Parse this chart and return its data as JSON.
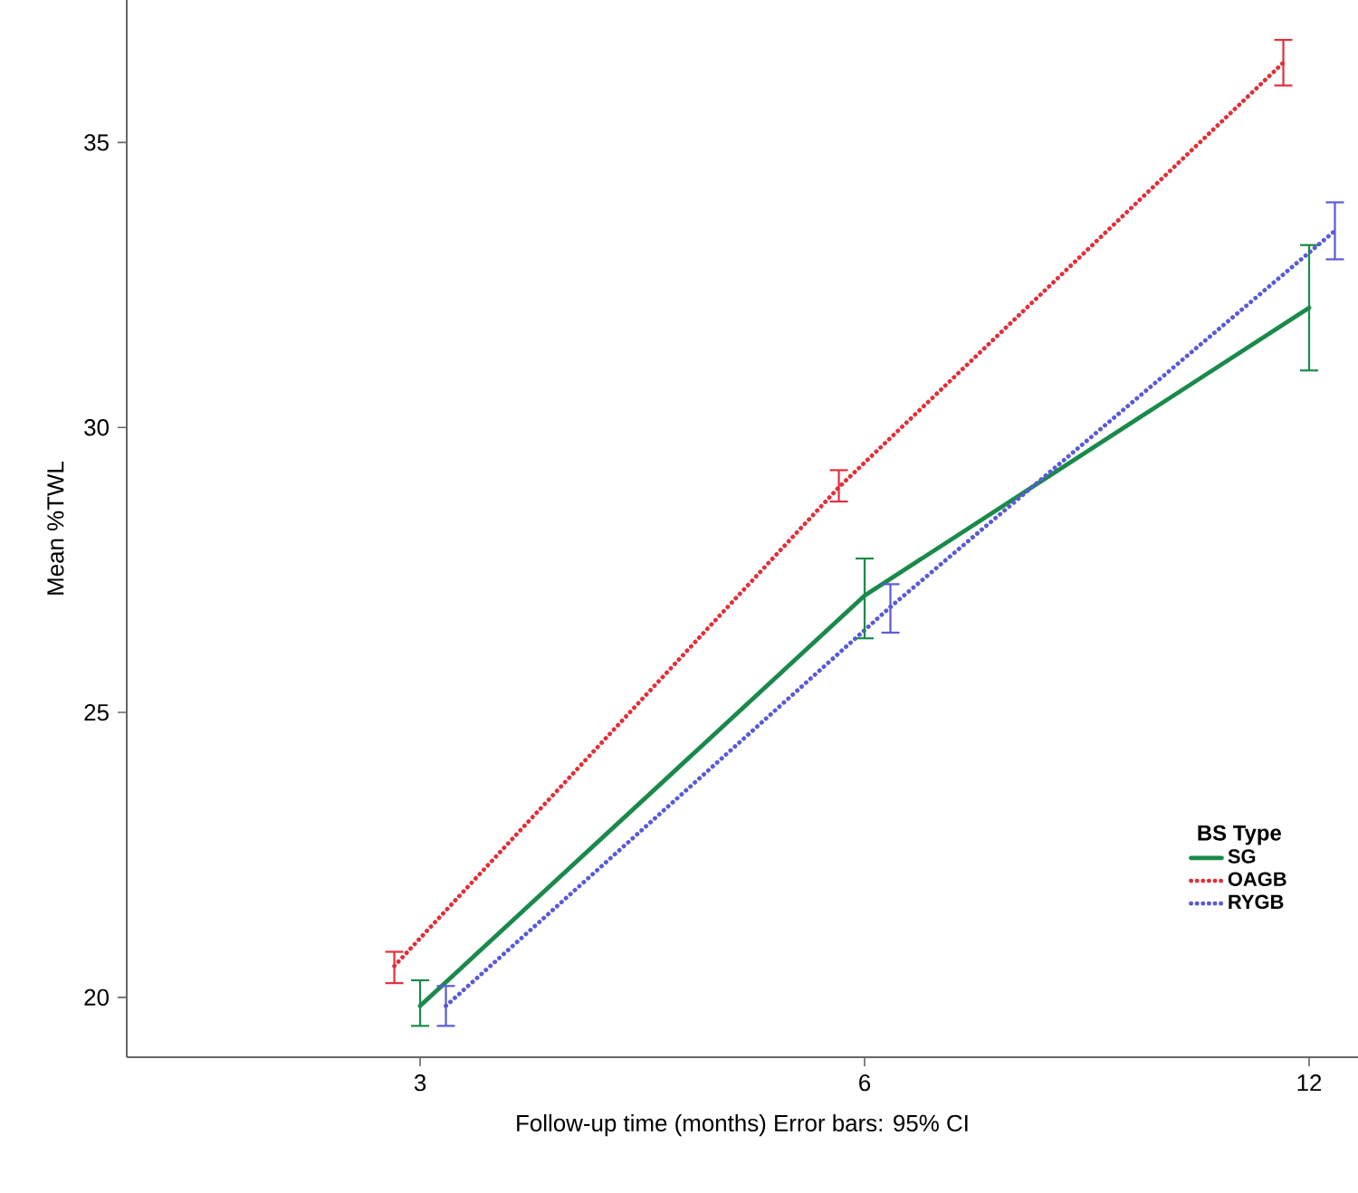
{
  "chart_data": {
    "type": "line",
    "xlabel": "Follow-up time (months) Error bars: 95% CI",
    "ylabel": "Mean %TWL",
    "legend_title": "BS Type",
    "categories": [
      "3",
      "6",
      "12"
    ],
    "series": [
      {
        "name": "SG",
        "color": "#1a8a4a",
        "line_style": "solid",
        "values": [
          19.85,
          27.05,
          32.1
        ],
        "errors": [
          [
            19.5,
            20.3
          ],
          [
            26.3,
            27.7
          ],
          [
            31.0,
            33.2
          ]
        ]
      },
      {
        "name": "OAGB",
        "color": "#e0303a",
        "line_style": "dotted",
        "values": [
          20.55,
          28.95,
          36.4
        ],
        "errors": [
          [
            20.25,
            20.8
          ],
          [
            28.7,
            29.25
          ],
          [
            36.0,
            36.8
          ]
        ]
      },
      {
        "name": "RYGB",
        "color": "#5a5ad8",
        "line_style": "dotted",
        "values": [
          19.85,
          26.85,
          33.45
        ],
        "errors": [
          [
            19.5,
            20.2
          ],
          [
            26.4,
            27.25
          ],
          [
            32.95,
            33.95
          ]
        ]
      }
    ],
    "ylim": [
      18.95,
      37.5
    ],
    "yticks": [
      20,
      25,
      30,
      35
    ],
    "grid": false,
    "legend": "bottom right",
    "marker": "none"
  }
}
